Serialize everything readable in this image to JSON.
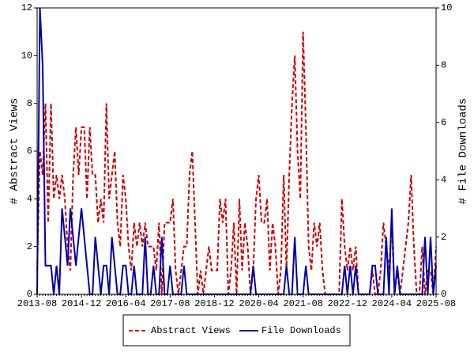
{
  "chart_data": {
    "type": "line",
    "categories": [
      "2013-08",
      null,
      null,
      null,
      null,
      null,
      null,
      null,
      null,
      null,
      null,
      null,
      null,
      null,
      null,
      null,
      "2014-12",
      null,
      null,
      null,
      null,
      null,
      null,
      null,
      null,
      null,
      null,
      null,
      null,
      null,
      null,
      null,
      "2016-04",
      null,
      null,
      null,
      null,
      null,
      null,
      null,
      null,
      null,
      null,
      null,
      null,
      null,
      null,
      null,
      "2017-08",
      null,
      null,
      null,
      null,
      null,
      null,
      null,
      null,
      null,
      null,
      null,
      null,
      null,
      null,
      null,
      "2018-12",
      null,
      null,
      null,
      null,
      null,
      null,
      null,
      null,
      null,
      null,
      null,
      null,
      null,
      null,
      null,
      "2020-04",
      null,
      null,
      null,
      null,
      null,
      null,
      null,
      null,
      null,
      null,
      null,
      null,
      null,
      null,
      null,
      "2021-08",
      null,
      null,
      null,
      null,
      null,
      null,
      null,
      null,
      null,
      null,
      null,
      null,
      null,
      null,
      null,
      "2022-12",
      null,
      null,
      null,
      null,
      null,
      null,
      null,
      null,
      null,
      null,
      null,
      null,
      null,
      null,
      null,
      "2024-04",
      null,
      null,
      null,
      null,
      null,
      null,
      null,
      null,
      null,
      null,
      null,
      null,
      null,
      null,
      null,
      "2025-08"
    ],
    "ylabel": "# Abstract Views",
    "y2label": "# File Downloads",
    "ylim": [
      0,
      12
    ],
    "yticks": [
      0,
      2,
      4,
      6,
      8,
      10,
      12
    ],
    "y2lim": [
      0,
      10
    ],
    "y2ticks": [
      0,
      2,
      4,
      6,
      8,
      10
    ],
    "legend": "bottom",
    "series": [
      {
        "name": "Abstract Views",
        "color": "#cc0000",
        "dash": true,
        "values": [
          1,
          6,
          5,
          8,
          3,
          8,
          4,
          5,
          4,
          5,
          4,
          2,
          1,
          5,
          7,
          5,
          7,
          7,
          4,
          7,
          5,
          5,
          3,
          4,
          3,
          8,
          4,
          5,
          6,
          3,
          2,
          5,
          4,
          2,
          1,
          3,
          2,
          3,
          2,
          3,
          2,
          2,
          2,
          1,
          3,
          0,
          3,
          3,
          3,
          4,
          1,
          0,
          1,
          2,
          2,
          5,
          6,
          3,
          0,
          1,
          0,
          1,
          2,
          1,
          1,
          1,
          4,
          3,
          4,
          0,
          1,
          3,
          0,
          4,
          1,
          3,
          2,
          0,
          1,
          4,
          5,
          3,
          3,
          4,
          1,
          3,
          2,
          0,
          1,
          5,
          1,
          5,
          8,
          10,
          6,
          4,
          11,
          7,
          2,
          1,
          3,
          2,
          3,
          1,
          0,
          0,
          0,
          0,
          0,
          0,
          4,
          2,
          1,
          2,
          1,
          2,
          0,
          0,
          0,
          0,
          0,
          1,
          0,
          0,
          1,
          3,
          2,
          1,
          3,
          0,
          1,
          0,
          1,
          2,
          3,
          5,
          2,
          0,
          0,
          2,
          0,
          1,
          1,
          0,
          2
        ]
      },
      {
        "name": "File Downloads",
        "color": "#0000aa",
        "axis": "y2",
        "values": [
          0,
          10,
          8,
          1,
          1,
          1,
          0,
          1,
          0,
          3,
          2,
          1,
          3,
          2,
          1,
          2,
          3,
          2,
          1,
          0,
          0,
          2,
          1,
          0,
          1,
          1,
          0,
          2,
          1,
          0,
          0,
          1,
          1,
          0,
          0,
          1,
          0,
          0,
          0,
          2,
          0,
          0,
          1,
          0,
          0,
          2,
          0,
          0,
          1,
          0,
          0,
          0,
          0,
          1,
          0,
          0,
          0,
          0,
          0,
          0,
          0,
          0,
          0,
          0,
          0,
          0,
          0,
          0,
          0,
          0,
          0,
          0,
          0,
          0,
          0,
          0,
          0,
          0,
          1,
          0,
          0,
          0,
          0,
          0,
          0,
          0,
          0,
          0,
          0,
          0,
          1,
          0,
          0,
          2,
          0,
          0,
          0,
          1,
          0,
          0,
          0,
          0,
          0,
          0,
          0,
          0,
          0,
          0,
          0,
          0,
          0,
          1,
          0,
          1,
          0,
          1,
          0,
          0,
          0,
          0,
          0,
          1,
          1,
          0,
          0,
          0,
          2,
          0,
          3,
          0,
          1,
          0,
          0,
          0,
          0,
          0,
          0,
          0,
          0,
          0,
          2,
          0,
          2,
          0,
          1
        ]
      }
    ]
  }
}
